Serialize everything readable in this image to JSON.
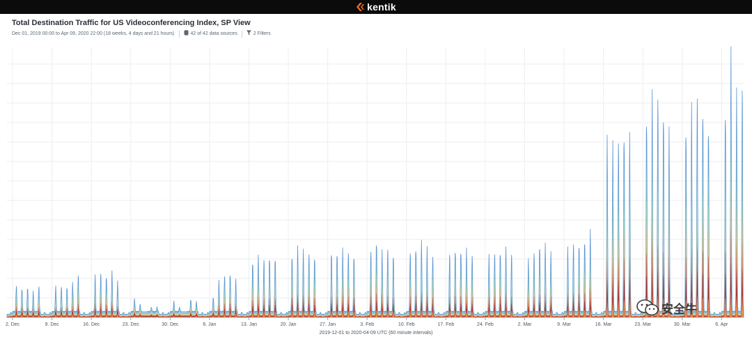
{
  "brand": {
    "name": "kentik"
  },
  "header": {
    "title": "Total Destination Traffic for US Videoconferencing Index, SP View",
    "range": "Dec 01, 2019 00:00 to Apr 09, 2020 22:00 (18 weeks, 4 days and 21 hours)",
    "sources": "42 of 42 data sources",
    "filters": "2 Filters",
    "database_icon": "database-icon",
    "filter_icon": "filter-icon"
  },
  "watermark": {
    "text": "安全牛",
    "icon": "wechat-icon"
  },
  "colors": {
    "outer": "#6fa3d8",
    "bands": [
      "#6fa3d8",
      "#7ec3c9",
      "#b7dfb0",
      "#eec27a",
      "#d9523e",
      "#8b1f35",
      "#f2a15e"
    ]
  },
  "chart_data": {
    "type": "area",
    "stacked": true,
    "title": "Total Destination Traffic for US Videoconferencing Index, SP View",
    "xlabel": "2019-12-01 to 2020-04-09 UTC (60 minute intervals)",
    "ylabel": "",
    "x_tick_labels": [
      "2. Dec",
      "9. Dec",
      "16. Dec",
      "23. Dec",
      "30. Dec",
      "6. Jan",
      "13. Jan",
      "20. Jan",
      "27. Jan",
      "3. Feb",
      "10. Feb",
      "17. Feb",
      "24. Feb",
      "2. Mar",
      "9. Mar",
      "16. Mar",
      "23. Mar",
      "30. Mar",
      "6. Apr"
    ],
    "grid": true,
    "legend": "none",
    "y_axis_labels": "none",
    "resolution": "60 minute intervals",
    "note": "Relative daily peak heights (0–100 scale, no y-axis values printed). Weekday peaks 5 per week; weekends low.",
    "daily_peaks": [
      {
        "date": "2019-12-02",
        "peak": 12
      },
      {
        "date": "2019-12-03",
        "peak": 11
      },
      {
        "date": "2019-12-04",
        "peak": 12
      },
      {
        "date": "2019-12-05",
        "peak": 10
      },
      {
        "date": "2019-12-06",
        "peak": 12
      },
      {
        "date": "2019-12-09",
        "peak": 12
      },
      {
        "date": "2019-12-10",
        "peak": 12
      },
      {
        "date": "2019-12-11",
        "peak": 12
      },
      {
        "date": "2019-12-12",
        "peak": 13
      },
      {
        "date": "2019-12-13",
        "peak": 16
      },
      {
        "date": "2019-12-16",
        "peak": 16
      },
      {
        "date": "2019-12-17",
        "peak": 17
      },
      {
        "date": "2019-12-18",
        "peak": 16
      },
      {
        "date": "2019-12-19",
        "peak": 17
      },
      {
        "date": "2019-12-20",
        "peak": 14
      },
      {
        "date": "2019-12-23",
        "peak": 7
      },
      {
        "date": "2019-12-24",
        "peak": 5
      },
      {
        "date": "2019-12-26",
        "peak": 4
      },
      {
        "date": "2019-12-27",
        "peak": 4
      },
      {
        "date": "2019-12-30",
        "peak": 6
      },
      {
        "date": "2019-12-31",
        "peak": 4
      },
      {
        "date": "2020-01-02",
        "peak": 7
      },
      {
        "date": "2020-01-03",
        "peak": 6
      },
      {
        "date": "2020-01-06",
        "peak": 8
      },
      {
        "date": "2020-01-07",
        "peak": 14
      },
      {
        "date": "2020-01-08",
        "peak": 16
      },
      {
        "date": "2020-01-09",
        "peak": 17
      },
      {
        "date": "2020-01-10",
        "peak": 14
      },
      {
        "date": "2020-01-13",
        "peak": 22
      },
      {
        "date": "2020-01-14",
        "peak": 23
      },
      {
        "date": "2020-01-15",
        "peak": 22
      },
      {
        "date": "2020-01-16",
        "peak": 23
      },
      {
        "date": "2020-01-17",
        "peak": 24
      },
      {
        "date": "2020-01-20",
        "peak": 24
      },
      {
        "date": "2020-01-21",
        "peak": 26
      },
      {
        "date": "2020-01-22",
        "peak": 26
      },
      {
        "date": "2020-01-23",
        "peak": 25
      },
      {
        "date": "2020-01-24",
        "peak": 24
      },
      {
        "date": "2020-01-27",
        "peak": 25
      },
      {
        "date": "2020-01-28",
        "peak": 26
      },
      {
        "date": "2020-01-29",
        "peak": 26
      },
      {
        "date": "2020-01-30",
        "peak": 25
      },
      {
        "date": "2020-01-31",
        "peak": 24
      },
      {
        "date": "2020-02-03",
        "peak": 26
      },
      {
        "date": "2020-02-04",
        "peak": 30
      },
      {
        "date": "2020-02-05",
        "peak": 25
      },
      {
        "date": "2020-02-06",
        "peak": 26
      },
      {
        "date": "2020-02-07",
        "peak": 24
      },
      {
        "date": "2020-02-10",
        "peak": 25
      },
      {
        "date": "2020-02-11",
        "peak": 27
      },
      {
        "date": "2020-02-12",
        "peak": 28
      },
      {
        "date": "2020-02-13",
        "peak": 27
      },
      {
        "date": "2020-02-14",
        "peak": 24
      },
      {
        "date": "2020-02-17",
        "peak": 24
      },
      {
        "date": "2020-02-18",
        "peak": 26
      },
      {
        "date": "2020-02-19",
        "peak": 27
      },
      {
        "date": "2020-02-20",
        "peak": 26
      },
      {
        "date": "2020-02-21",
        "peak": 24
      },
      {
        "date": "2020-02-24",
        "peak": 24
      },
      {
        "date": "2020-02-25",
        "peak": 25
      },
      {
        "date": "2020-02-26",
        "peak": 26
      },
      {
        "date": "2020-02-27",
        "peak": 26
      },
      {
        "date": "2020-02-28",
        "peak": 24
      },
      {
        "date": "2020-03-02",
        "peak": 22
      },
      {
        "date": "2020-03-03",
        "peak": 25
      },
      {
        "date": "2020-03-04",
        "peak": 28
      },
      {
        "date": "2020-03-05",
        "peak": 27
      },
      {
        "date": "2020-03-06",
        "peak": 25
      },
      {
        "date": "2020-03-09",
        "peak": 26
      },
      {
        "date": "2020-03-10",
        "peak": 28
      },
      {
        "date": "2020-03-11",
        "peak": 28
      },
      {
        "date": "2020-03-12",
        "peak": 31
      },
      {
        "date": "2020-03-13",
        "peak": 33
      },
      {
        "date": "2020-03-16",
        "peak": 66
      },
      {
        "date": "2020-03-17",
        "peak": 67
      },
      {
        "date": "2020-03-18",
        "peak": 69
      },
      {
        "date": "2020-03-19",
        "peak": 73
      },
      {
        "date": "2020-03-20",
        "peak": 68
      },
      {
        "date": "2020-03-23",
        "peak": 81
      },
      {
        "date": "2020-03-24",
        "peak": 85
      },
      {
        "date": "2020-03-25",
        "peak": 85
      },
      {
        "date": "2020-03-26",
        "peak": 80
      },
      {
        "date": "2020-03-27",
        "peak": 69
      },
      {
        "date": "2020-03-30",
        "peak": 75
      },
      {
        "date": "2020-03-31",
        "peak": 79
      },
      {
        "date": "2020-04-01",
        "peak": 84
      },
      {
        "date": "2020-04-02",
        "peak": 80
      },
      {
        "date": "2020-04-03",
        "peak": 77
      },
      {
        "date": "2020-04-06",
        "peak": 81
      },
      {
        "date": "2020-04-07",
        "peak": 98
      },
      {
        "date": "2020-04-08",
        "peak": 87
      },
      {
        "date": "2020-04-09",
        "peak": 90
      }
    ]
  }
}
